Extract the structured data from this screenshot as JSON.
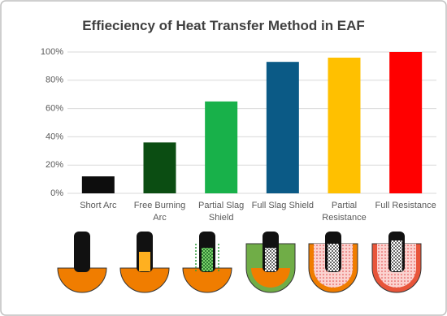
{
  "chart_data": {
    "type": "bar",
    "title": "Effieciency of Heat Transfer Method in EAF",
    "categories": [
      "Short Arc",
      "Free Burning Arc",
      "Partial Slag Shield",
      "Full Slag Shield",
      "Partial Resistance",
      "Full Resistance"
    ],
    "values": [
      12,
      36,
      65,
      93,
      96,
      100
    ],
    "colors": [
      "#0d0d0d",
      "#0b4d12",
      "#18b14a",
      "#0b5a86",
      "#ffc000",
      "#ff0000"
    ],
    "ylim": [
      0,
      100
    ],
    "yticks": [
      {
        "value": 0,
        "label": "0%"
      },
      {
        "value": 20,
        "label": "20%"
      },
      {
        "value": 40,
        "label": "40%"
      },
      {
        "value": 60,
        "label": "60%"
      },
      {
        "value": 80,
        "label": "80%"
      },
      {
        "value": 100,
        "label": "100%"
      }
    ],
    "grid": true
  }
}
